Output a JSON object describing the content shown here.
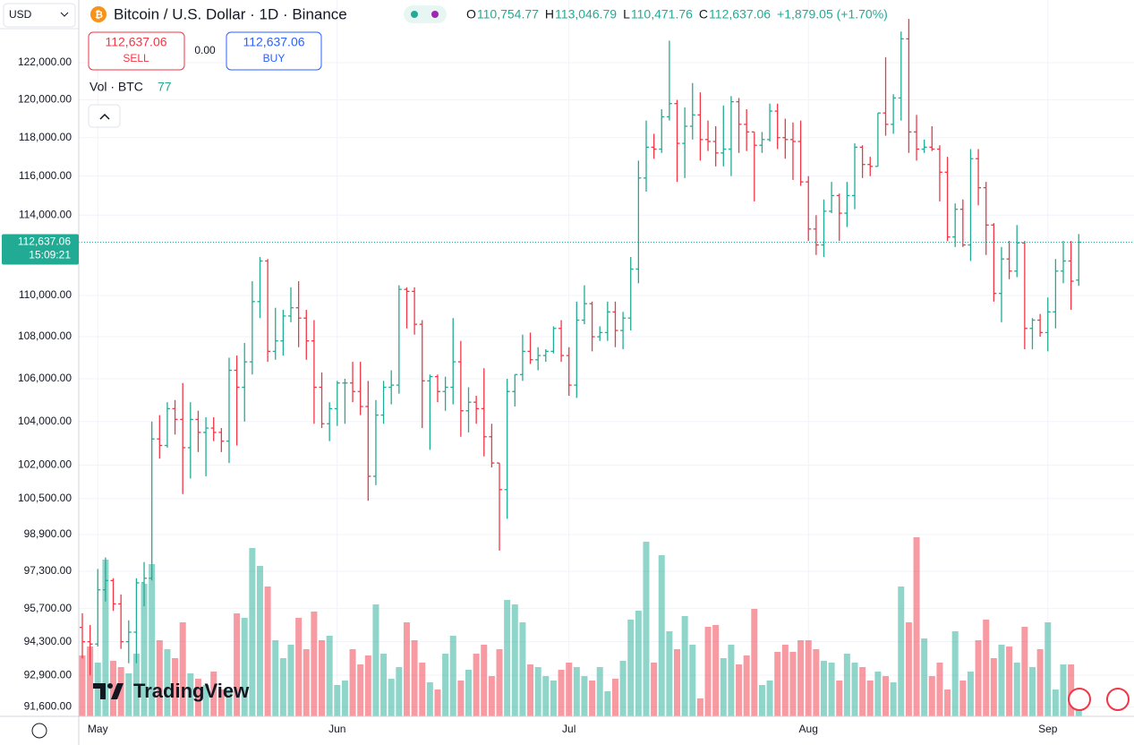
{
  "header": {
    "currency": "USD",
    "title": "Bitcoin / U.S. Dollar · 1D · Binance",
    "ohlc": [
      {
        "label": "O",
        "value": "110,754.77"
      },
      {
        "label": "H",
        "value": "113,046.79"
      },
      {
        "label": "L",
        "value": "110,471.76"
      },
      {
        "label": "C",
        "value": "112,637.06"
      }
    ],
    "change": "+1,879.05 (+1.70%)",
    "sell_price": "112,637.06",
    "sell": "SELL",
    "spread": "0.00",
    "buy_price": "112,637.06",
    "buy": "BUY",
    "volume_label": "Vol · BTC",
    "logo": "TradingView"
  },
  "chart_data": {
    "type": "ohlc",
    "log_scale": true,
    "up_color": "#22ab94",
    "down_color": "#f23645",
    "price_line_color": "#22ab94",
    "last_price_label": "112,637.06",
    "countdown": "15:09:21",
    "categories": [
      null,
      null,
      "May",
      null,
      null,
      null,
      null,
      null,
      null,
      null,
      null,
      null,
      null,
      null,
      null,
      null,
      null,
      null,
      null,
      null,
      null,
      null,
      null,
      null,
      null,
      null,
      null,
      null,
      null,
      null,
      null,
      null,
      null,
      "Jun",
      null,
      null,
      null,
      null,
      null,
      null,
      null,
      null,
      null,
      null,
      null,
      null,
      null,
      null,
      null,
      null,
      null,
      null,
      null,
      null,
      null,
      null,
      null,
      null,
      null,
      null,
      null,
      null,
      null,
      "Jul",
      null,
      null,
      null,
      null,
      null,
      null,
      null,
      null,
      null,
      null,
      null,
      null,
      null,
      null,
      null,
      null,
      null,
      null,
      null,
      null,
      null,
      null,
      null,
      null,
      null,
      null,
      null,
      null,
      null,
      null,
      "Aug",
      null,
      null,
      null,
      null,
      null,
      null,
      null,
      null,
      null,
      null,
      null,
      null,
      null,
      null,
      null,
      null,
      null,
      null,
      null,
      null,
      null,
      null,
      null,
      null,
      null,
      null,
      null,
      null,
      null,
      null,
      "Sep",
      null,
      null,
      null,
      null
    ],
    "open": [
      94900,
      94300,
      94200,
      96500,
      96900,
      95900,
      94300,
      94700,
      96800,
      97000,
      103200,
      102900,
      104600,
      104100,
      102800,
      104100,
      103500,
      103700,
      103500,
      103100,
      106400,
      105600,
      106800,
      109700,
      111700,
      107300,
      107800,
      109000,
      109400,
      108900,
      107800,
      105600,
      103900,
      104600,
      105800,
      105800,
      105400,
      104700,
      101500,
      104300,
      105600,
      105700,
      110300,
      110200,
      108600,
      105900,
      106100,
      105400,
      105600,
      106800,
      104500,
      104900,
      104600,
      103300,
      102100,
      100900,
      105400,
      106200,
      107300,
      106900,
      107100,
      107300,
      108400,
      107100,
      105700,
      108800,
      109600,
      108000,
      108200,
      109200,
      108300,
      108900,
      111300,
      115900,
      117500,
      117400,
      119100,
      119800,
      117700,
      118600,
      119200,
      117900,
      117800,
      117200,
      117400,
      119900,
      118700,
      118300,
      117600,
      117900,
      119400,
      118000,
      117900,
      117800,
      115700,
      113300,
      112500,
      114200,
      115000,
      114100,
      115000,
      117500,
      116600,
      116500,
      119300,
      118700,
      120100,
      123300,
      118300,
      117400,
      117500,
      117400,
      116200,
      112900,
      114300,
      112500,
      116900,
      115400,
      113500,
      110100,
      111800,
      111200,
      112600,
      108400,
      108800,
      108200,
      109200,
      111200,
      111700,
      110754.77
    ],
    "high": [
      95500,
      95000,
      97400,
      97900,
      97000,
      96300,
      95200,
      97000,
      97700,
      104000,
      104300,
      104900,
      105000,
      105800,
      104900,
      104500,
      104200,
      104200,
      103700,
      107000,
      107100,
      107700,
      110700,
      111900,
      111800,
      109400,
      109300,
      110400,
      110700,
      109300,
      108800,
      106300,
      104900,
      105900,
      106000,
      106800,
      106800,
      105900,
      105000,
      105900,
      106400,
      110500,
      110400,
      110400,
      108800,
      106200,
      106200,
      106100,
      108900,
      107800,
      105600,
      105200,
      106500,
      103900,
      102100,
      106000,
      106200,
      108100,
      108200,
      107500,
      107400,
      108500,
      108800,
      107500,
      109700,
      110500,
      109700,
      108500,
      109700,
      109700,
      109200,
      111900,
      116800,
      118900,
      118200,
      119500,
      123200,
      120000,
      119600,
      120900,
      120400,
      118900,
      118600,
      119700,
      120200,
      120100,
      119500,
      118300,
      118300,
      119800,
      119800,
      119000,
      118800,
      118900,
      116000,
      114000,
      114800,
      115700,
      115100,
      115700,
      117700,
      117600,
      117000,
      119300,
      122300,
      120300,
      123700,
      124400,
      119200,
      117900,
      118600,
      117600,
      117000,
      114600,
      114800,
      117400,
      117400,
      115700,
      113600,
      112400,
      112700,
      113500,
      112700,
      108900,
      109100,
      109900,
      111800,
      112700,
      112700,
      113046.79
    ],
    "low": [
      93600,
      92900,
      94100,
      96000,
      95600,
      94000,
      93400,
      93400,
      95800,
      96900,
      102300,
      102800,
      103400,
      100700,
      101400,
      102600,
      101500,
      103100,
      102600,
      102100,
      102900,
      104000,
      106200,
      108900,
      106800,
      106900,
      107100,
      108700,
      107500,
      106900,
      103900,
      103700,
      103100,
      103800,
      103900,
      104900,
      104300,
      100400,
      101100,
      103900,
      104800,
      105300,
      108400,
      108100,
      103700,
      102700,
      104900,
      104500,
      104800,
      103300,
      103500,
      103900,
      102400,
      101900,
      98200,
      99600,
      104700,
      105900,
      106700,
      106400,
      106800,
      107200,
      106800,
      105200,
      105100,
      108600,
      107300,
      107800,
      107800,
      107500,
      107400,
      108300,
      110600,
      115200,
      116900,
      117200,
      118900,
      115700,
      115900,
      117900,
      116800,
      117300,
      116500,
      116500,
      116000,
      117200,
      117300,
      114700,
      117200,
      117800,
      117400,
      116900,
      115800,
      115500,
      112700,
      112000,
      111900,
      114100,
      112700,
      113400,
      114300,
      115900,
      116000,
      116500,
      118100,
      118200,
      118900,
      117200,
      116800,
      117200,
      117300,
      114700,
      112700,
      112400,
      112400,
      111700,
      114500,
      112000,
      109700,
      108700,
      110800,
      110900,
      107400,
      107400,
      108000,
      107300,
      108400,
      110600,
      109300,
      110471.76
    ],
    "close": [
      94300,
      94200,
      96500,
      96900,
      95900,
      94300,
      94700,
      96800,
      97000,
      103200,
      102900,
      104600,
      104100,
      102800,
      104100,
      103500,
      103700,
      103500,
      103100,
      106400,
      105600,
      106800,
      109700,
      111700,
      107300,
      107800,
      109000,
      109400,
      108900,
      107800,
      105600,
      103900,
      104600,
      105800,
      105800,
      105400,
      104700,
      101500,
      104300,
      105600,
      105700,
      110300,
      110200,
      108600,
      105900,
      106100,
      105400,
      105600,
      106800,
      104500,
      104900,
      104600,
      103300,
      102100,
      100900,
      105400,
      106200,
      107300,
      106900,
      107100,
      107300,
      108400,
      107100,
      105700,
      108800,
      109600,
      108000,
      108200,
      109200,
      108300,
      108900,
      111300,
      115900,
      117500,
      117400,
      119100,
      119800,
      117700,
      118600,
      119200,
      117900,
      117800,
      117200,
      117400,
      119900,
      118700,
      118300,
      117600,
      117900,
      119400,
      118000,
      117900,
      117800,
      115700,
      113300,
      112500,
      114200,
      115000,
      114100,
      115000,
      117500,
      116600,
      116500,
      119300,
      118700,
      120100,
      123300,
      118300,
      117400,
      117500,
      117400,
      116200,
      112900,
      114300,
      112500,
      116900,
      115400,
      113500,
      110100,
      111800,
      111200,
      112600,
      108400,
      108800,
      108200,
      109200,
      111200,
      111700,
      110700,
      112637.06
    ],
    "volume": [
      272,
      312,
      240,
      700,
      248,
      220,
      192,
      280,
      592,
      680,
      340,
      300,
      260,
      420,
      192,
      168,
      140,
      200,
      120,
      120,
      460,
      440,
      752,
      672,
      580,
      340,
      260,
      320,
      440,
      300,
      468,
      340,
      360,
      140,
      160,
      300,
      232,
      272,
      500,
      280,
      168,
      220,
      420,
      340,
      240,
      152,
      120,
      280,
      360,
      160,
      208,
      280,
      320,
      180,
      300,
      520,
      500,
      420,
      232,
      220,
      180,
      160,
      208,
      240,
      220,
      180,
      160,
      220,
      112,
      168,
      248,
      432,
      472,
      780,
      240,
      720,
      380,
      300,
      448,
      320,
      80,
      400,
      408,
      260,
      320,
      232,
      272,
      480,
      140,
      160,
      288,
      320,
      288,
      340,
      340,
      300,
      248,
      240,
      160,
      280,
      240,
      220,
      160,
      200,
      180,
      152,
      580,
      420,
      800,
      348,
      180,
      240,
      120,
      380,
      160,
      200,
      340,
      432,
      260,
      320,
      312,
      240,
      400,
      220,
      300,
      420,
      120,
      232,
      232,
      77
    ],
    "ylim": [
      91220,
      125450
    ],
    "yticks": [
      {
        "value": 122000,
        "label": "122,000.00"
      },
      {
        "value": 120000,
        "label": "120,000.00"
      },
      {
        "value": 118000,
        "label": "118,000.00"
      },
      {
        "value": 116000,
        "label": "116,000.00"
      },
      {
        "value": 114000,
        "label": "114,000.00"
      },
      {
        "value": 110000,
        "label": "110,000.00"
      },
      {
        "value": 108000,
        "label": "108,000.00"
      },
      {
        "value": 106000,
        "label": "106,000.00"
      },
      {
        "value": 104000,
        "label": "104,000.00"
      },
      {
        "value": 102000,
        "label": "102,000.00"
      },
      {
        "value": 100500,
        "label": "100,500.00"
      },
      {
        "value": 98900,
        "label": "98,900.00"
      },
      {
        "value": 97300,
        "label": "97,300.00"
      },
      {
        "value": 95700,
        "label": "95,700.00"
      },
      {
        "value": 94300,
        "label": "94,300.00"
      },
      {
        "value": 92900,
        "label": "92,900.00"
      },
      {
        "value": 91600,
        "label": "91,600.00"
      }
    ],
    "grid": true
  }
}
